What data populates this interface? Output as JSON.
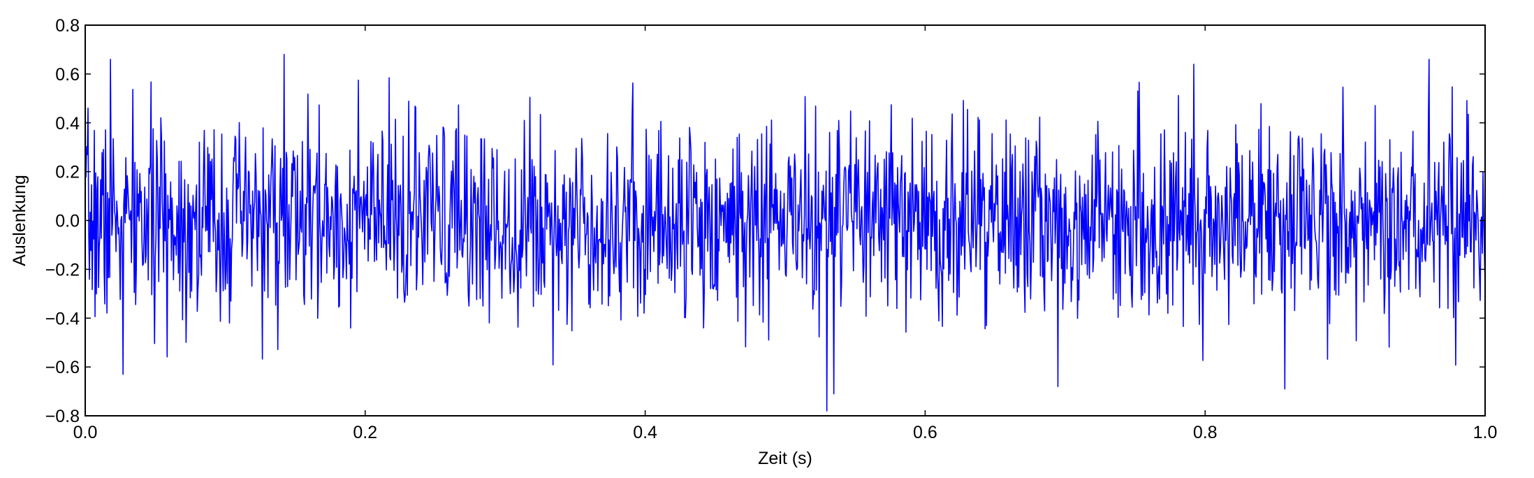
{
  "chart_data": {
    "type": "line",
    "title": "",
    "xlabel": "Zeit (s)",
    "ylabel": "Auslenkung",
    "xlim": [
      0.0,
      1.0
    ],
    "ylim": [
      -0.8,
      0.8
    ],
    "x_ticks": [
      "0.0",
      "0.2",
      "0.4",
      "0.6",
      "0.8",
      "1.0"
    ],
    "y_ticks": [
      "0.8",
      "0.6",
      "0.4",
      "0.2",
      "0.0",
      "−0.2",
      "−0.4",
      "−0.6",
      "−0.8"
    ],
    "grid": false,
    "series": [
      {
        "name": "",
        "color": "#0000ff",
        "sample_count": 2000,
        "x_range": [
          0.0,
          1.0
        ],
        "std": 0.2,
        "noise_seed": 7,
        "extremes": [
          {
            "x": 0.018,
            "y": 0.66
          },
          {
            "x": 0.142,
            "y": 0.68
          },
          {
            "x": 0.027,
            "y": -0.63
          },
          {
            "x": 0.53,
            "y": -0.78
          },
          {
            "x": 0.535,
            "y": -0.71
          },
          {
            "x": 0.695,
            "y": -0.68
          },
          {
            "x": 0.857,
            "y": -0.69
          },
          {
            "x": 0.96,
            "y": 0.66
          },
          {
            "x": 0.792,
            "y": 0.64
          },
          {
            "x": 0.752,
            "y": 0.53
          }
        ]
      }
    ]
  }
}
